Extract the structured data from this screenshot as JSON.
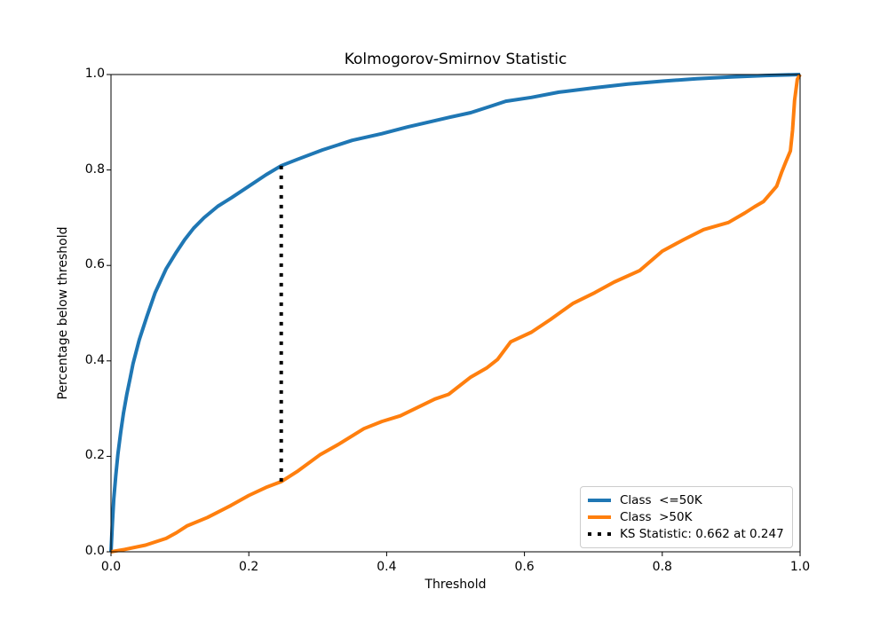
{
  "title": "Kolmogorov-Smirnov Statistic",
  "axes": {
    "xlabel": "Threshold",
    "ylabel": "Percentage below threshold",
    "x_ticks": [
      "0.0",
      "0.2",
      "0.4",
      "0.6",
      "0.8",
      "1.0"
    ],
    "y_ticks": [
      "0.0",
      "0.2",
      "0.4",
      "0.6",
      "0.8",
      "1.0"
    ]
  },
  "legend": {
    "entries": [
      {
        "label": "Class  <=50K",
        "color": "#1f77b4",
        "style": "solid"
      },
      {
        "label": "Class  >50K",
        "color": "#ff7f0e",
        "style": "solid"
      },
      {
        "label": "KS Statistic: 0.662 at 0.247",
        "color": "#000000",
        "style": "dotted"
      }
    ],
    "position": "lower right"
  },
  "chart_data": {
    "type": "line",
    "title": "Kolmogorov-Smirnov Statistic",
    "xlabel": "Threshold",
    "ylabel": "Percentage below threshold",
    "xlim": [
      0.0,
      1.0
    ],
    "ylim": [
      0.0,
      1.0
    ],
    "grid": false,
    "legend_position": "lower right",
    "ks_annotation": {
      "statistic": 0.662,
      "threshold": 0.247,
      "cdf_low": 0.147,
      "cdf_high": 0.809
    },
    "series": [
      {
        "name": "Class  <=50K",
        "color": "#1f77b4",
        "style": "solid",
        "points": [
          [
            0.0,
            0.0
          ],
          [
            0.002,
            0.06
          ],
          [
            0.004,
            0.11
          ],
          [
            0.007,
            0.16
          ],
          [
            0.01,
            0.205
          ],
          [
            0.014,
            0.25
          ],
          [
            0.018,
            0.29
          ],
          [
            0.023,
            0.33
          ],
          [
            0.028,
            0.365
          ],
          [
            0.032,
            0.394
          ],
          [
            0.041,
            0.444
          ],
          [
            0.052,
            0.493
          ],
          [
            0.064,
            0.543
          ],
          [
            0.08,
            0.593
          ],
          [
            0.095,
            0.628
          ],
          [
            0.107,
            0.654
          ],
          [
            0.12,
            0.678
          ],
          [
            0.135,
            0.7
          ],
          [
            0.155,
            0.724
          ],
          [
            0.175,
            0.742
          ],
          [
            0.2,
            0.766
          ],
          [
            0.225,
            0.79
          ],
          [
            0.247,
            0.809
          ],
          [
            0.27,
            0.822
          ],
          [
            0.307,
            0.842
          ],
          [
            0.35,
            0.862
          ],
          [
            0.393,
            0.876
          ],
          [
            0.43,
            0.89
          ],
          [
            0.46,
            0.9
          ],
          [
            0.49,
            0.91
          ],
          [
            0.522,
            0.92
          ],
          [
            0.55,
            0.933
          ],
          [
            0.573,
            0.944
          ],
          [
            0.61,
            0.952
          ],
          [
            0.65,
            0.963
          ],
          [
            0.7,
            0.972
          ],
          [
            0.75,
            0.98
          ],
          [
            0.8,
            0.986
          ],
          [
            0.85,
            0.991
          ],
          [
            0.9,
            0.995
          ],
          [
            0.95,
            0.998
          ],
          [
            1.0,
            1.0
          ]
        ]
      },
      {
        "name": "Class  >50K",
        "color": "#ff7f0e",
        "style": "solid",
        "points": [
          [
            0.0,
            0.0
          ],
          [
            0.02,
            0.005
          ],
          [
            0.05,
            0.014
          ],
          [
            0.08,
            0.028
          ],
          [
            0.095,
            0.04
          ],
          [
            0.11,
            0.054
          ],
          [
            0.14,
            0.072
          ],
          [
            0.174,
            0.097
          ],
          [
            0.2,
            0.118
          ],
          [
            0.225,
            0.135
          ],
          [
            0.247,
            0.147
          ],
          [
            0.27,
            0.168
          ],
          [
            0.303,
            0.203
          ],
          [
            0.33,
            0.225
          ],
          [
            0.367,
            0.258
          ],
          [
            0.393,
            0.273
          ],
          [
            0.42,
            0.285
          ],
          [
            0.47,
            0.32
          ],
          [
            0.49,
            0.33
          ],
          [
            0.522,
            0.366
          ],
          [
            0.545,
            0.385
          ],
          [
            0.561,
            0.403
          ],
          [
            0.58,
            0.44
          ],
          [
            0.61,
            0.46
          ],
          [
            0.638,
            0.487
          ],
          [
            0.67,
            0.52
          ],
          [
            0.702,
            0.543
          ],
          [
            0.73,
            0.565
          ],
          [
            0.767,
            0.589
          ],
          [
            0.8,
            0.63
          ],
          [
            0.831,
            0.654
          ],
          [
            0.86,
            0.675
          ],
          [
            0.896,
            0.69
          ],
          [
            0.92,
            0.71
          ],
          [
            0.934,
            0.723
          ],
          [
            0.947,
            0.734
          ],
          [
            0.966,
            0.766
          ],
          [
            0.973,
            0.794
          ],
          [
            0.979,
            0.816
          ],
          [
            0.986,
            0.84
          ],
          [
            0.989,
            0.883
          ],
          [
            0.992,
            0.946
          ],
          [
            0.996,
            0.99
          ],
          [
            1.0,
            1.0
          ]
        ]
      },
      {
        "name": "KS Statistic: 0.662 at 0.247",
        "color": "#000000",
        "style": "dotted",
        "points": [
          [
            0.247,
            0.147
          ],
          [
            0.247,
            0.809
          ]
        ]
      }
    ]
  }
}
